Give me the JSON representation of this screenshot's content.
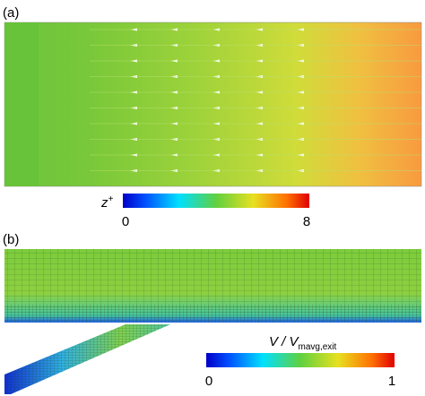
{
  "panels": [
    {
      "label": "(a)",
      "colorbar": {
        "title": "z",
        "title_sup": "+",
        "min_label": "0",
        "max_label": "8"
      }
    },
    {
      "label": "(b)",
      "colorbar": {
        "title": "V / V",
        "title_sub": "mavg,exit",
        "min_label": "0",
        "max_label": "1"
      }
    }
  ]
}
